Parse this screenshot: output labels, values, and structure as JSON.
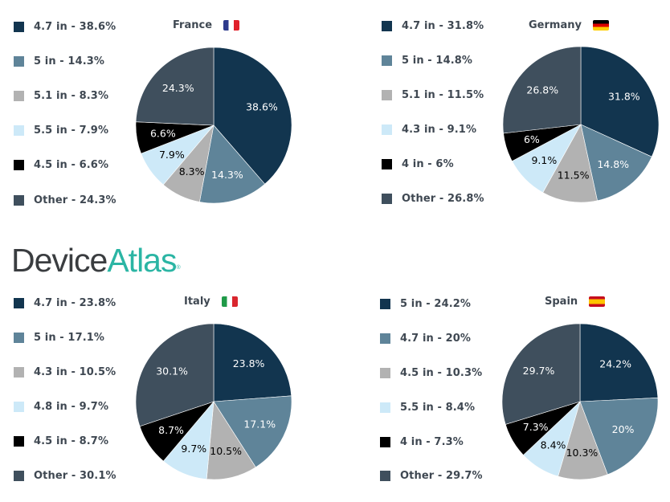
{
  "logo": {
    "part1": "Device",
    "part2": "Atlas",
    "mark": "®"
  },
  "colors": {
    "c1": "#12354f",
    "c2": "#5f8499",
    "c3": "#b2b2b2",
    "c4": "#cde9f8",
    "c5": "#000000",
    "c6": "#3f4f5d"
  },
  "charts": [
    {
      "country": "France",
      "flag": "france-flag-icon",
      "legend": [
        "4.7 in - 38.6%",
        "5 in - 14.3%",
        "5.1 in - 8.3%",
        "5.5 in - 7.9%",
        "4.5 in - 6.6%",
        "Other - 24.3%"
      ]
    },
    {
      "country": "Germany",
      "flag": "germany-flag-icon",
      "legend": [
        "4.7 in - 31.8%",
        "5 in - 14.8%",
        "5.1 in - 11.5%",
        "4.3 in - 9.1%",
        "4 in - 6%",
        "Other - 26.8%"
      ]
    },
    {
      "country": "Italy",
      "flag": "italy-flag-icon",
      "legend": [
        "4.7 in - 23.8%",
        "5 in - 17.1%",
        "4.3 in - 10.5%",
        "4.8 in - 9.7%",
        "4.5 in - 8.7%",
        "Other - 30.1%"
      ]
    },
    {
      "country": "Spain",
      "flag": "spain-flag-icon",
      "legend": [
        "5 in - 24.2%",
        "4.7 in - 20%",
        "4.5 in - 10.3%",
        "5.5 in - 8.4%",
        "4 in - 7.3%",
        "Other - 29.7%"
      ]
    }
  ],
  "chart_data": [
    {
      "type": "pie",
      "title": "France",
      "categories": [
        "4.7 in",
        "5 in",
        "5.1 in",
        "5.5 in",
        "4.5 in",
        "Other"
      ],
      "values": [
        38.6,
        14.3,
        8.3,
        7.9,
        6.6,
        24.3
      ],
      "labels": [
        "38.6%",
        "14.3%",
        "8.3%",
        "7.9%",
        "6.6%",
        "24.3%"
      ],
      "colors": [
        "#12354f",
        "#5f8499",
        "#b2b2b2",
        "#cde9f8",
        "#000000",
        "#3f4f5d"
      ],
      "legend_position": "left"
    },
    {
      "type": "pie",
      "title": "Germany",
      "categories": [
        "4.7 in",
        "5 in",
        "5.1 in",
        "4.3 in",
        "4 in",
        "Other"
      ],
      "values": [
        31.8,
        14.8,
        11.5,
        9.1,
        6,
        26.8
      ],
      "labels": [
        "31.8%",
        "14.8%",
        "11.5%",
        "9.1%",
        "6%",
        "26.8%"
      ],
      "colors": [
        "#12354f",
        "#5f8499",
        "#b2b2b2",
        "#cde9f8",
        "#000000",
        "#3f4f5d"
      ],
      "legend_position": "left"
    },
    {
      "type": "pie",
      "title": "Italy",
      "categories": [
        "4.7 in",
        "5 in",
        "4.3 in",
        "4.8 in",
        "4.5 in",
        "Other"
      ],
      "values": [
        23.8,
        17.1,
        10.5,
        9.7,
        8.7,
        30.1
      ],
      "labels": [
        "23.8%",
        "17.1%",
        "10.5%",
        "9.7%",
        "8.7%",
        "30.1%"
      ],
      "colors": [
        "#12354f",
        "#5f8499",
        "#b2b2b2",
        "#cde9f8",
        "#000000",
        "#3f4f5d"
      ],
      "legend_position": "left"
    },
    {
      "type": "pie",
      "title": "Spain",
      "categories": [
        "5 in",
        "4.7 in",
        "4.5 in",
        "5.5 in",
        "4 in",
        "Other"
      ],
      "values": [
        24.2,
        20,
        10.3,
        8.4,
        7.3,
        29.7
      ],
      "labels": [
        "24.2%",
        "20%",
        "10.3%",
        "8.4%",
        "7.3%",
        "29.7%"
      ],
      "colors": [
        "#12354f",
        "#5f8499",
        "#b2b2b2",
        "#cde9f8",
        "#000000",
        "#3f4f5d"
      ],
      "legend_position": "left"
    }
  ]
}
